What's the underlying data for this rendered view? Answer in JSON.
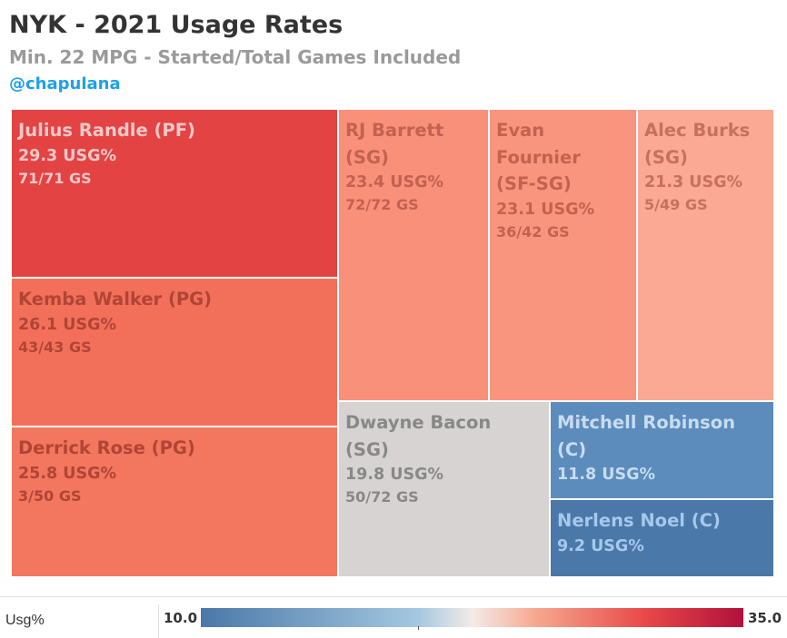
{
  "header": {
    "title": "NYK - 2021 Usage Rates",
    "subtitle": "Min. 22 MPG - Started/Total Games Included",
    "handle": "@chapulana"
  },
  "legend": {
    "title": "Usg%",
    "min_label": "10.0",
    "max_label": "35.0"
  },
  "chart_data": {
    "type": "treemap",
    "title": "NYK - 2021 Usage Rates",
    "subtitle": "Min. 22 MPG - Started/Total Games Included",
    "color_scale": {
      "label": "Usg%",
      "min": 10.0,
      "max": 35.0,
      "low_color": "#4a78a8",
      "mid_color": "#f4ece8",
      "high_color": "#b0103c"
    },
    "items": [
      {
        "player": "Julius Randle (PF)",
        "usg": 29.3,
        "usg_label": "29.3 USG%",
        "games_label": "71/71 GS",
        "started": 71,
        "games": 71,
        "fill": "#e34343",
        "text": "#f3c8c8"
      },
      {
        "player": "Kemba Walker (PG)",
        "usg": 26.1,
        "usg_label": "26.1 USG%",
        "games_label": "43/43 GS",
        "started": 43,
        "games": 43,
        "fill": "#f2705a",
        "text": "#b04535"
      },
      {
        "player": "Derrick Rose (PG)",
        "usg": 25.8,
        "usg_label": "25.8 USG%",
        "games_label": "3/50 GS",
        "started": 3,
        "games": 50,
        "fill": "#f3765e",
        "text": "#b04535"
      },
      {
        "player": "RJ Barrett (SG)",
        "usg": 23.4,
        "usg_label": "23.4 USG%",
        "games_label": "72/72 GS",
        "started": 72,
        "games": 72,
        "fill": "#f9907a",
        "text": "#c26250"
      },
      {
        "player": "Evan Fournier (SF-SG)",
        "usg": 23.1,
        "usg_label": "23.1 USG%",
        "games_label": "36/42 GS",
        "started": 36,
        "games": 42,
        "fill": "#f9957e",
        "text": "#c26250"
      },
      {
        "player": "Alec Burks (SG)",
        "usg": 21.3,
        "usg_label": "21.3 USG%",
        "games_label": "5/49 GS",
        "started": 5,
        "games": 49,
        "fill": "#fba894",
        "text": "#c8705e"
      },
      {
        "player": "Dwayne Bacon (SG)",
        "usg": 19.8,
        "usg_label": "19.8 USG%",
        "games_label": "50/72 GS",
        "started": 50,
        "games": 72,
        "fill": "#d6d3d2",
        "text": "#888888"
      },
      {
        "player": "Mitchell Robinson (C)",
        "usg": 11.8,
        "usg_label": "11.8 USG%",
        "games_label": "",
        "started": null,
        "games": null,
        "fill": "#5b8cbc",
        "text": "#c8dcf0"
      },
      {
        "player": "Nerlens Noel (C)",
        "usg": 9.2,
        "usg_label": "9.2 USG%",
        "games_label": "",
        "started": null,
        "games": null,
        "fill": "#4a78a8",
        "text": "#a6c8ec"
      }
    ]
  }
}
